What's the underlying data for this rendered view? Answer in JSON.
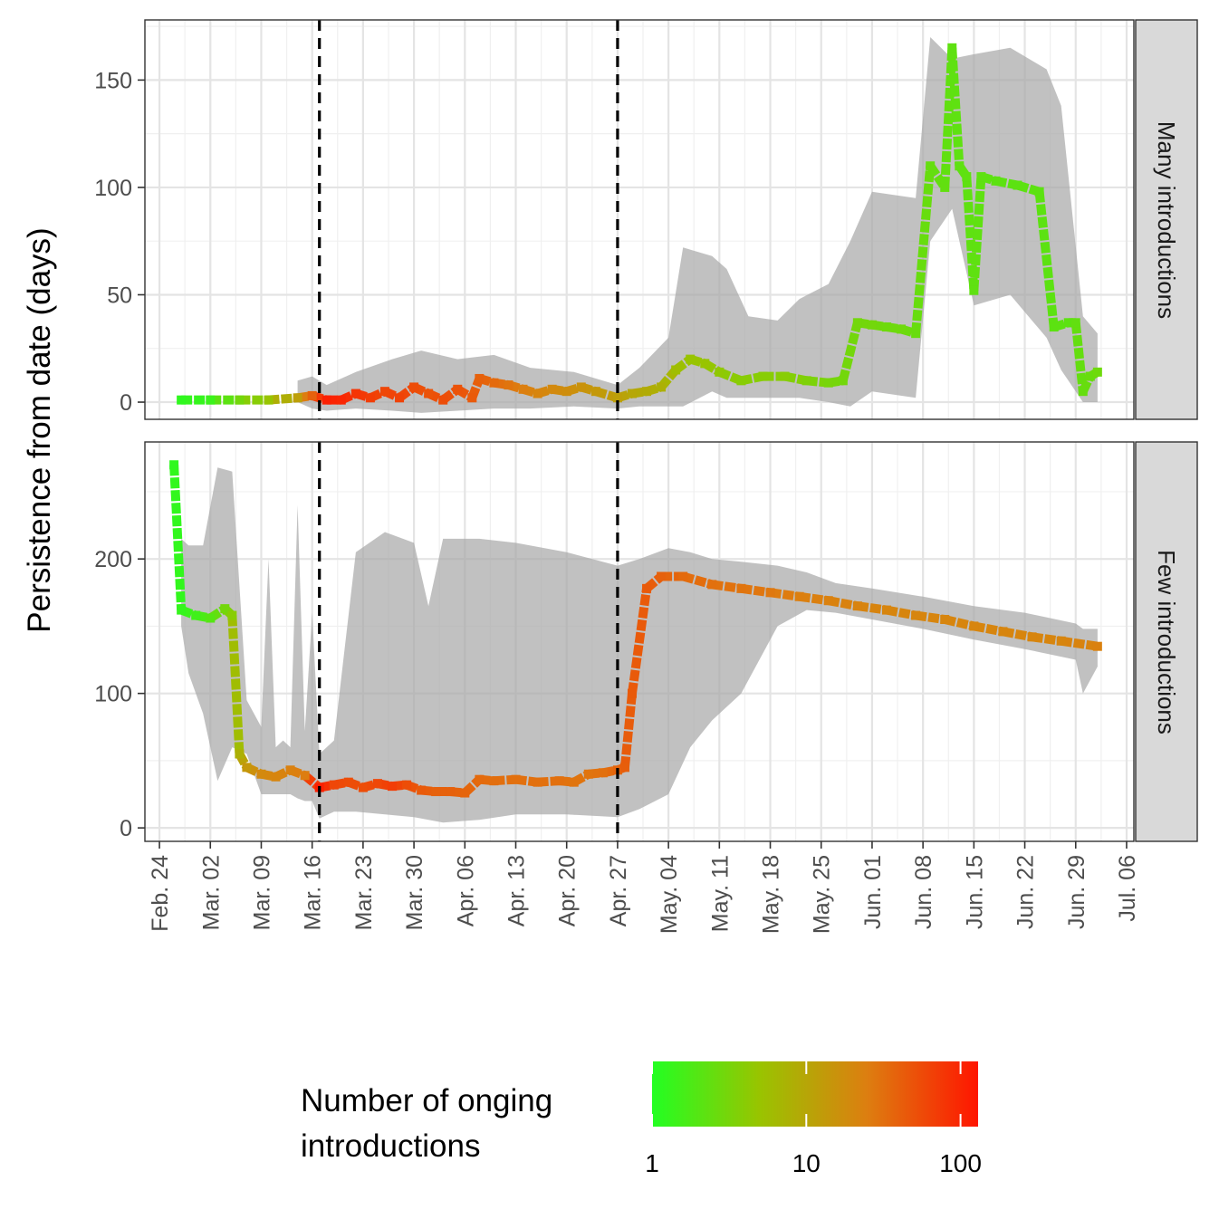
{
  "chart_data": {
    "type": "line",
    "ylabel": "Persistence from date (days)",
    "x_ticks": [
      {
        "date": "2020-02-24",
        "label": "Feb. 24"
      },
      {
        "date": "2020-03-02",
        "label": "Mar. 02"
      },
      {
        "date": "2020-03-09",
        "label": "Mar. 09"
      },
      {
        "date": "2020-03-16",
        "label": "Mar. 16"
      },
      {
        "date": "2020-03-23",
        "label": "Mar. 23"
      },
      {
        "date": "2020-03-30",
        "label": "Mar. 30"
      },
      {
        "date": "2020-04-06",
        "label": "Apr. 06"
      },
      {
        "date": "2020-04-13",
        "label": "Apr. 13"
      },
      {
        "date": "2020-04-20",
        "label": "Apr. 20"
      },
      {
        "date": "2020-04-27",
        "label": "Apr. 27"
      },
      {
        "date": "2020-05-04",
        "label": "May. 04"
      },
      {
        "date": "2020-05-11",
        "label": "May. 11"
      },
      {
        "date": "2020-05-18",
        "label": "May. 18"
      },
      {
        "date": "2020-05-25",
        "label": "May. 25"
      },
      {
        "date": "2020-06-01",
        "label": "Jun. 01"
      },
      {
        "date": "2020-06-08",
        "label": "Jun. 08"
      },
      {
        "date": "2020-06-15",
        "label": "Jun. 15"
      },
      {
        "date": "2020-06-22",
        "label": "Jun. 22"
      },
      {
        "date": "2020-06-29",
        "label": "Jun. 29"
      },
      {
        "date": "2020-07-06",
        "label": "Jul. 06"
      }
    ],
    "x_range": [
      "2020-02-22",
      "2020-07-07"
    ],
    "vlines": [
      "2020-03-17",
      "2020-04-27"
    ],
    "grid": true,
    "legend": {
      "title_line1": "Number of onging",
      "title_line2": "introductions",
      "scale": "log10",
      "range": [
        1,
        130
      ],
      "ticks": [
        "1",
        "10",
        "100"
      ],
      "colors": [
        "#22ff22",
        "#99c400",
        "#dd7e10",
        "#ff1500"
      ],
      "position": "bottom"
    },
    "panels": [
      {
        "strip": "Many introductions",
        "ylim": [
          -8,
          178
        ],
        "y_ticks": [
          0,
          50,
          100,
          150
        ],
        "series": [
          [
            "2020-02-27",
            1,
            1.2
          ],
          [
            "2020-03-02",
            1,
            1.4
          ],
          [
            "2020-03-06",
            1,
            3
          ],
          [
            "2020-03-10",
            1,
            5
          ],
          [
            "2020-03-14",
            2,
            12
          ],
          [
            "2020-03-16",
            3,
            40
          ],
          [
            "2020-03-18",
            1,
            110
          ],
          [
            "2020-03-20",
            1,
            100
          ],
          [
            "2020-03-22",
            4,
            80
          ],
          [
            "2020-03-24",
            2,
            70
          ],
          [
            "2020-03-26",
            5,
            60
          ],
          [
            "2020-03-28",
            2,
            65
          ],
          [
            "2020-03-30",
            7,
            55
          ],
          [
            "2020-04-01",
            4,
            50
          ],
          [
            "2020-04-03",
            1,
            55
          ],
          [
            "2020-04-05",
            6,
            50
          ],
          [
            "2020-04-07",
            2,
            45
          ],
          [
            "2020-04-08",
            11,
            40
          ],
          [
            "2020-04-10",
            9,
            35
          ],
          [
            "2020-04-12",
            8,
            30
          ],
          [
            "2020-04-14",
            6,
            25
          ],
          [
            "2020-04-16",
            4,
            22
          ],
          [
            "2020-04-18",
            6,
            20
          ],
          [
            "2020-04-20",
            5,
            18
          ],
          [
            "2020-04-22",
            7,
            16
          ],
          [
            "2020-04-24",
            5,
            14
          ],
          [
            "2020-04-27",
            2,
            12
          ],
          [
            "2020-04-29",
            4,
            10
          ],
          [
            "2020-05-01",
            5,
            9
          ],
          [
            "2020-05-03",
            7,
            8
          ],
          [
            "2020-05-05",
            15,
            6
          ],
          [
            "2020-05-07",
            20,
            5
          ],
          [
            "2020-05-09",
            18,
            5
          ],
          [
            "2020-05-11",
            14,
            4.5
          ],
          [
            "2020-05-14",
            10,
            4
          ],
          [
            "2020-05-17",
            12,
            4
          ],
          [
            "2020-05-20",
            12,
            4
          ],
          [
            "2020-05-23",
            10,
            3.5
          ],
          [
            "2020-05-26",
            9,
            3.2
          ],
          [
            "2020-05-28",
            10,
            3
          ],
          [
            "2020-05-30",
            37,
            3
          ],
          [
            "2020-06-01",
            36,
            3
          ],
          [
            "2020-06-03",
            35,
            2.8
          ],
          [
            "2020-06-05",
            34,
            2.8
          ],
          [
            "2020-06-07",
            32,
            2.6
          ],
          [
            "2020-06-09",
            110,
            2.5
          ],
          [
            "2020-06-11",
            100,
            2.4
          ],
          [
            "2020-06-12",
            165,
            2.3
          ],
          [
            "2020-06-13",
            110,
            2.3
          ],
          [
            "2020-06-14",
            105,
            2.3
          ],
          [
            "2020-06-15",
            52,
            2.3
          ],
          [
            "2020-06-16",
            105,
            2.3
          ],
          [
            "2020-06-18",
            103,
            2.2
          ],
          [
            "2020-06-21",
            101,
            2.2
          ],
          [
            "2020-06-24",
            98,
            2.2
          ],
          [
            "2020-06-26",
            35,
            2.2
          ],
          [
            "2020-06-28",
            37,
            2.2
          ],
          [
            "2020-06-29",
            37,
            2.4
          ],
          [
            "2020-06-30",
            5,
            2.5
          ],
          [
            "2020-07-01",
            12,
            2.6
          ],
          [
            "2020-07-02",
            14,
            2.8
          ]
        ],
        "ribbon": [
          [
            "2020-03-14",
            0,
            10
          ],
          [
            "2020-03-16",
            -3,
            12
          ],
          [
            "2020-03-18",
            -4,
            8
          ],
          [
            "2020-03-22",
            -3,
            14
          ],
          [
            "2020-03-27",
            -4,
            20
          ],
          [
            "2020-03-31",
            -5,
            24
          ],
          [
            "2020-04-05",
            -4,
            20
          ],
          [
            "2020-04-10",
            -3,
            22
          ],
          [
            "2020-04-15",
            -3,
            16
          ],
          [
            "2020-04-21",
            -2,
            14
          ],
          [
            "2020-04-27",
            -3,
            8
          ],
          [
            "2020-04-30",
            -2,
            16
          ],
          [
            "2020-05-04",
            -2,
            30
          ],
          [
            "2020-05-06",
            -2,
            72
          ],
          [
            "2020-05-10",
            5,
            68
          ],
          [
            "2020-05-12",
            2,
            62
          ],
          [
            "2020-05-15",
            2,
            40
          ],
          [
            "2020-05-19",
            2,
            38
          ],
          [
            "2020-05-22",
            2,
            48
          ],
          [
            "2020-05-26",
            0,
            55
          ],
          [
            "2020-05-29",
            -2,
            75
          ],
          [
            "2020-06-01",
            5,
            98
          ],
          [
            "2020-06-07",
            2,
            95
          ],
          [
            "2020-06-09",
            75,
            170
          ],
          [
            "2020-06-12",
            90,
            160
          ],
          [
            "2020-06-15",
            45,
            162
          ],
          [
            "2020-06-20",
            50,
            165
          ],
          [
            "2020-06-25",
            30,
            155
          ],
          [
            "2020-06-27",
            15,
            138
          ],
          [
            "2020-06-30",
            0,
            40
          ],
          [
            "2020-07-02",
            0,
            32
          ]
        ]
      },
      {
        "strip": "Few introductions",
        "ylim": [
          -10,
          287
        ],
        "y_ticks": [
          0,
          100,
          200
        ],
        "series": [
          [
            "2020-02-26",
            270,
            1.2
          ],
          [
            "2020-02-27",
            162,
            1.3
          ],
          [
            "2020-02-29",
            158,
            1.5
          ],
          [
            "2020-03-02",
            156,
            2
          ],
          [
            "2020-03-04",
            163,
            3
          ],
          [
            "2020-03-05",
            158,
            4
          ],
          [
            "2020-03-06",
            55,
            8
          ],
          [
            "2020-03-07",
            45,
            14
          ],
          [
            "2020-03-09",
            40,
            20
          ],
          [
            "2020-03-11",
            38,
            22
          ],
          [
            "2020-03-13",
            43,
            24
          ],
          [
            "2020-03-15",
            39,
            26
          ],
          [
            "2020-03-17",
            30,
            110
          ],
          [
            "2020-03-19",
            32,
            60
          ],
          [
            "2020-03-21",
            34,
            55
          ],
          [
            "2020-03-23",
            30,
            55
          ],
          [
            "2020-03-25",
            33,
            60
          ],
          [
            "2020-03-27",
            31,
            70
          ],
          [
            "2020-03-29",
            32,
            55
          ],
          [
            "2020-03-31",
            28,
            45
          ],
          [
            "2020-04-02",
            27,
            40
          ],
          [
            "2020-04-04",
            27,
            40
          ],
          [
            "2020-04-06",
            26,
            38
          ],
          [
            "2020-04-08",
            36,
            35
          ],
          [
            "2020-04-10",
            35,
            33
          ],
          [
            "2020-04-13",
            36,
            32
          ],
          [
            "2020-04-16",
            34,
            32
          ],
          [
            "2020-04-19",
            35,
            32
          ],
          [
            "2020-04-21",
            34,
            30
          ],
          [
            "2020-04-23",
            40,
            30
          ],
          [
            "2020-04-25",
            41,
            32
          ],
          [
            "2020-04-27",
            43,
            38
          ],
          [
            "2020-04-28",
            45,
            42
          ],
          [
            "2020-04-29",
            100,
            45
          ],
          [
            "2020-05-01",
            178,
            45
          ],
          [
            "2020-05-03",
            187,
            40
          ],
          [
            "2020-05-06",
            187,
            35
          ],
          [
            "2020-05-10",
            181,
            32
          ],
          [
            "2020-05-14",
            178,
            30
          ],
          [
            "2020-05-18",
            175,
            28
          ],
          [
            "2020-05-22",
            172,
            25
          ],
          [
            "2020-05-26",
            169,
            24
          ],
          [
            "2020-05-30",
            165,
            23
          ],
          [
            "2020-06-03",
            162,
            22
          ],
          [
            "2020-06-07",
            158,
            22
          ],
          [
            "2020-06-11",
            155,
            22
          ],
          [
            "2020-06-15",
            150,
            22
          ],
          [
            "2020-06-19",
            146,
            22
          ],
          [
            "2020-06-23",
            142,
            22
          ],
          [
            "2020-06-27",
            139,
            22
          ],
          [
            "2020-07-02",
            135,
            24
          ]
        ],
        "ribbon": [
          [
            "2020-02-27",
            150,
            215
          ],
          [
            "2020-02-28",
            115,
            210
          ],
          [
            "2020-03-01",
            85,
            210
          ],
          [
            "2020-03-03",
            35,
            268
          ],
          [
            "2020-03-05",
            60,
            265
          ],
          [
            "2020-03-07",
            55,
            95
          ],
          [
            "2020-03-09",
            25,
            75
          ],
          [
            "2020-03-10",
            25,
            200
          ],
          [
            "2020-03-11",
            25,
            60
          ],
          [
            "2020-03-12",
            25,
            65
          ],
          [
            "2020-03-13",
            25,
            60
          ],
          [
            "2020-03-14",
            22,
            240
          ],
          [
            "2020-03-15",
            20,
            72
          ],
          [
            "2020-03-16",
            20,
            160
          ],
          [
            "2020-03-17",
            7,
            55
          ],
          [
            "2020-03-19",
            12,
            65
          ],
          [
            "2020-03-22",
            12,
            205
          ],
          [
            "2020-03-26",
            10,
            220
          ],
          [
            "2020-03-30",
            8,
            212
          ],
          [
            "2020-04-01",
            6,
            165
          ],
          [
            "2020-04-03",
            4,
            215
          ],
          [
            "2020-04-08",
            6,
            215
          ],
          [
            "2020-04-13",
            10,
            212
          ],
          [
            "2020-04-20",
            10,
            205
          ],
          [
            "2020-04-27",
            8,
            195
          ],
          [
            "2020-04-30",
            14,
            200
          ],
          [
            "2020-05-04",
            25,
            208
          ],
          [
            "2020-05-07",
            60,
            205
          ],
          [
            "2020-05-10",
            80,
            200
          ],
          [
            "2020-05-14",
            100,
            198
          ],
          [
            "2020-05-19",
            150,
            195
          ],
          [
            "2020-05-23",
            162,
            190
          ],
          [
            "2020-05-27",
            160,
            182
          ],
          [
            "2020-06-01",
            155,
            178
          ],
          [
            "2020-06-08",
            148,
            172
          ],
          [
            "2020-06-15",
            140,
            165
          ],
          [
            "2020-06-22",
            133,
            160
          ],
          [
            "2020-06-29",
            125,
            152
          ],
          [
            "2020-06-30",
            100,
            148
          ],
          [
            "2020-07-02",
            120,
            148
          ]
        ]
      }
    ]
  }
}
